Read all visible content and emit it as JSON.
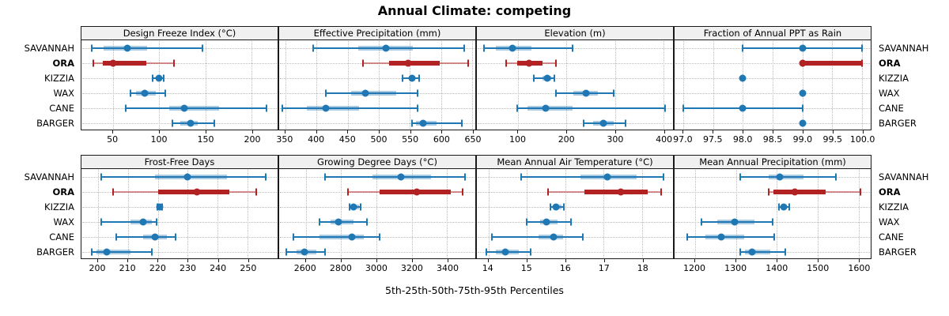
{
  "title": "Annual Climate: competing",
  "xlabel": "5th-25th-50th-75th-95th Percentiles",
  "colors": {
    "series_normal": "#1f77b4",
    "series_normal_band": "rgba(31,119,180,0.38)",
    "series_highlight": "#b22222",
    "series_highlight_line": "rgba(178,34,34,0.5)",
    "strip_bg": "#f0f0f0",
    "panel_border": "#1a1a1a",
    "grid": "#bdbdbd"
  },
  "rows": [
    {
      "label": "SAVANNAH",
      "highlight": false
    },
    {
      "label": "ORA",
      "highlight": true
    },
    {
      "label": "KIZZIA",
      "highlight": false
    },
    {
      "label": "WAX",
      "highlight": false
    },
    {
      "label": "CANE",
      "highlight": false
    },
    {
      "label": "BARGER",
      "highlight": false
    }
  ],
  "chart_data": {
    "type": "percentile-dotplot",
    "percentile_labels": [
      "5th",
      "25th",
      "50th",
      "75th",
      "95th"
    ],
    "layout": {
      "panel_rows": 2,
      "panel_cols": 4,
      "grid": true
    },
    "panels": [
      {
        "title": "Design Freeze Index (°C)",
        "row": 0,
        "xlim": [
          16,
          228
        ],
        "ticks": [
          50,
          100,
          150,
          200
        ],
        "tick_labels": [
          "50",
          "100",
          "150",
          "200"
        ],
        "series": {
          "SAVANNAH": [
            27,
            40,
            66,
            87,
            147
          ],
          "ORA": [
            29,
            39,
            50,
            86,
            116
          ],
          "KIZZIA": [
            93,
            97,
            100,
            102,
            105
          ],
          "WAX": [
            69,
            75,
            84,
            96,
            107
          ],
          "CANE": [
            64,
            111,
            127,
            165,
            216
          ],
          "BARGER": [
            114,
            123,
            134,
            142,
            160
          ]
        }
      },
      {
        "title": "Effective Precipitation (mm)",
        "row": 0,
        "xlim": [
          340,
          655
        ],
        "ticks": [
          350,
          400,
          450,
          500,
          550,
          600,
          650
        ],
        "tick_labels": [
          "350",
          "400",
          "450",
          "500",
          "550",
          "600",
          "650"
        ],
        "series": {
          "SAVANNAH": [
            395,
            467,
            512,
            555,
            637
          ],
          "ORA": [
            475,
            517,
            547,
            598,
            643
          ],
          "KIZZIA": [
            538,
            548,
            553,
            559,
            565
          ],
          "WAX": [
            415,
            455,
            478,
            528,
            562
          ],
          "CANE": [
            345,
            385,
            415,
            468,
            562
          ],
          "BARGER": [
            553,
            560,
            571,
            593,
            633
          ]
        }
      },
      {
        "title": "Elevation (m)",
        "row": 0,
        "xlim": [
          15,
          420
        ],
        "ticks": [
          100,
          200,
          300,
          400
        ],
        "tick_labels": [
          "100",
          "200",
          "300",
          "400"
        ],
        "series": {
          "SAVANNAH": [
            30,
            55,
            88,
            127,
            212
          ],
          "ORA": [
            75,
            98,
            122,
            150,
            178
          ],
          "KIZZIA": [
            133,
            150,
            160,
            168,
            175
          ],
          "WAX": [
            178,
            215,
            240,
            265,
            297
          ],
          "CANE": [
            98,
            120,
            157,
            212,
            403
          ],
          "BARGER": [
            235,
            255,
            276,
            298,
            322
          ]
        }
      },
      {
        "title": "Fraction of Annual PPT as Rain",
        "row": 0,
        "xlim": [
          96.85,
          100.15
        ],
        "ticks": [
          97.0,
          97.5,
          98.0,
          98.5,
          99.0,
          99.5,
          100.0
        ],
        "tick_labels": [
          "97.0",
          "97.5",
          "98.0",
          "98.5",
          "99.0",
          "99.5",
          "100.0"
        ],
        "series": {
          "SAVANNAH": [
            98,
            98.95,
            99,
            99.05,
            100
          ],
          "ORA": [
            99,
            99,
            99,
            100,
            100
          ],
          "KIZZIA": [
            98,
            98,
            98,
            98,
            98
          ],
          "WAX": [
            99,
            99,
            99,
            99,
            99
          ],
          "CANE": [
            97,
            97.95,
            98,
            98.05,
            99
          ],
          "BARGER": [
            99,
            99,
            99,
            99,
            99
          ]
        }
      },
      {
        "title": "Frost-Free Days",
        "row": 1,
        "xlim": [
          194.5,
          260
        ],
        "ticks": [
          200,
          210,
          220,
          230,
          240,
          250
        ],
        "tick_labels": [
          "200",
          "210",
          "220",
          "230",
          "240",
          "250"
        ],
        "series": {
          "SAVANNAH": [
            201,
            219,
            230,
            243,
            256
          ],
          "ORA": [
            205,
            220,
            233,
            244,
            253
          ],
          "KIZZIA": [
            219.8,
            220.2,
            220.6,
            221,
            221.4
          ],
          "WAX": [
            201,
            211,
            215,
            218,
            219.5
          ],
          "CANE": [
            206,
            215,
            219,
            223,
            226
          ],
          "BARGER": [
            198,
            199.5,
            203,
            211,
            218
          ]
        }
      },
      {
        "title": "Growing Degree Days (°C)",
        "row": 1,
        "xlim": [
          2450,
          3560
        ],
        "ticks": [
          2600,
          2800,
          3000,
          3200,
          3400
        ],
        "tick_labels": [
          "2600",
          "2800",
          "3000",
          "3200",
          "3400"
        ],
        "series": {
          "SAVANNAH": [
            2710,
            2980,
            3140,
            3310,
            3500
          ],
          "ORA": [
            2840,
            3020,
            3230,
            3420,
            3490
          ],
          "KIZZIA": [
            2850,
            2862,
            2872,
            2900,
            2912
          ],
          "WAX": [
            2680,
            2740,
            2785,
            2870,
            2945
          ],
          "CANE": [
            2530,
            2680,
            2860,
            2930,
            3020
          ],
          "BARGER": [
            2490,
            2550,
            2595,
            2660,
            2710
          ]
        }
      },
      {
        "title": "Mean Annual Air Temperature (°C)",
        "row": 1,
        "xlim": [
          13.7,
          18.8
        ],
        "ticks": [
          14,
          15,
          16,
          17,
          18
        ],
        "tick_labels": [
          "14",
          "15",
          "16",
          "17",
          "18"
        ],
        "series": {
          "SAVANNAH": [
            14.85,
            16.4,
            17.1,
            17.85,
            18.55
          ],
          "ORA": [
            15.55,
            16.5,
            17.45,
            18.15,
            18.5
          ],
          "KIZZIA": [
            15.62,
            15.7,
            15.76,
            15.9,
            15.97
          ],
          "WAX": [
            15.0,
            15.35,
            15.5,
            15.8,
            16.15
          ],
          "CANE": [
            14.1,
            15.3,
            15.7,
            15.95,
            16.45
          ],
          "BARGER": [
            13.95,
            14.2,
            14.45,
            14.8,
            15.1
          ]
        }
      },
      {
        "title": "Mean Annual Precipitation (mm)",
        "row": 1,
        "xlim": [
          1150,
          1630
        ],
        "ticks": [
          1200,
          1300,
          1400,
          1500,
          1600
        ],
        "tick_labels": [
          "1200",
          "1300",
          "1400",
          "1500",
          "1600"
        ],
        "series": {
          "SAVANNAH": [
            1310,
            1380,
            1408,
            1465,
            1545
          ],
          "ORA": [
            1380,
            1392,
            1445,
            1520,
            1605
          ],
          "KIZZIA": [
            1405,
            1412,
            1417,
            1424,
            1430
          ],
          "WAX": [
            1215,
            1255,
            1297,
            1345,
            1390
          ],
          "CANE": [
            1180,
            1225,
            1265,
            1320,
            1393
          ],
          "BARGER": [
            1310,
            1322,
            1340,
            1385,
            1420
          ]
        }
      }
    ]
  }
}
